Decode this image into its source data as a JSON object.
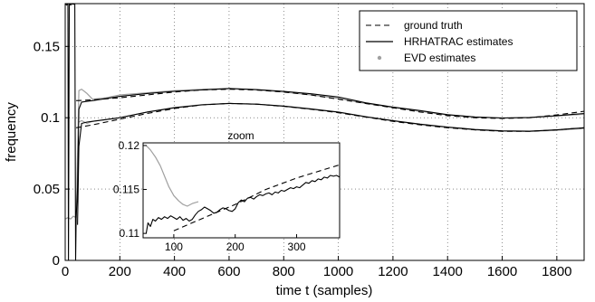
{
  "chart_data": [
    {
      "type": "line",
      "title": "",
      "xlabel": "time t (samples)",
      "ylabel": "frequency",
      "xlim": [
        0,
        1900
      ],
      "ylim": [
        0,
        0.18
      ],
      "xticks": [
        0,
        200,
        400,
        600,
        800,
        1000,
        1200,
        1400,
        1600,
        1800
      ],
      "yticks": [
        0,
        0.05,
        0.1,
        0.15
      ],
      "xtick_labels": [
        "0",
        "200",
        "400",
        "600",
        "800",
        "1000",
        "1200",
        "1400",
        "1600",
        "1800"
      ],
      "ytick_labels": [
        "0",
        "0.05",
        "0.1",
        "0.15"
      ],
      "grid": "dotted",
      "legend_position": "top-right",
      "legend": [
        "ground truth",
        "HRHATRAC estimates",
        "EVD estimates"
      ],
      "series": [
        {
          "name": "ground truth",
          "style": "dashed",
          "color": "#000000",
          "lines": [
            {
              "x": [
                40,
                100,
                200,
                300,
                400,
                500,
                600,
                700,
                800,
                900,
                1000,
                1100,
                1200,
                1300,
                1400,
                1500,
                1600,
                1700,
                1800,
                1900
              ],
              "y": [
                0.112,
                0.1125,
                0.114,
                0.116,
                0.118,
                0.1195,
                0.12,
                0.1195,
                0.118,
                0.116,
                0.113,
                0.11,
                0.107,
                0.104,
                0.1015,
                0.1,
                0.0995,
                0.1,
                0.102,
                0.1045
              ]
            },
            {
              "x": [
                40,
                100,
                200,
                300,
                400,
                500,
                600,
                700,
                800,
                900,
                1000,
                1100,
                1200,
                1300,
                1400,
                1500,
                1600,
                1700,
                1800,
                1900
              ],
              "y": [
                0.093,
                0.095,
                0.099,
                0.103,
                0.1065,
                0.109,
                0.11,
                0.1095,
                0.108,
                0.106,
                0.1035,
                0.1005,
                0.0975,
                0.095,
                0.093,
                0.0915,
                0.0905,
                0.0905,
                0.0915,
                0.093
              ]
            }
          ]
        },
        {
          "name": "HRHATRAC estimates",
          "style": "solid",
          "color": "#000000",
          "lines": [
            {
              "x": [
                0,
                5,
                10,
                12,
                15,
                20,
                25,
                30,
                35,
                38,
                40,
                45,
                50,
                60,
                80,
                100,
                200,
                300,
                400,
                500,
                600,
                700,
                800,
                900,
                1000,
                1100,
                1200,
                1300,
                1400,
                1500,
                1600,
                1700,
                1800,
                1900
              ],
              "y": [
                0.18,
                0.179,
                0.18,
                0.0,
                0.18,
                0.179,
                0.18,
                0.1795,
                0.18,
                0.0,
                0.03,
                0.05,
                0.106,
                0.111,
                0.1115,
                0.112,
                0.115,
                0.117,
                0.1185,
                0.1195,
                0.1205,
                0.1198,
                0.1185,
                0.1168,
                0.1145,
                0.1105,
                0.1075,
                0.105,
                0.1022,
                0.1005,
                0.0998,
                0.1002,
                0.1015,
                0.103
              ]
            },
            {
              "x": [
                45,
                50,
                60,
                80,
                100,
                200,
                300,
                400,
                500,
                600,
                700,
                800,
                900,
                1000,
                1100,
                1200,
                1300,
                1400,
                1500,
                1600,
                1700,
                1800,
                1900
              ],
              "y": [
                0.025,
                0.08,
                0.096,
                0.097,
                0.0975,
                0.1,
                0.104,
                0.107,
                0.109,
                0.11,
                0.1095,
                0.1082,
                0.1062,
                0.104,
                0.1008,
                0.098,
                0.0955,
                0.0935,
                0.0918,
                0.0908,
                0.0906,
                0.0915,
                0.093
              ]
            }
          ]
        },
        {
          "name": "EVD estimates",
          "style": "dotted",
          "color": "#a0a0a0",
          "lines": [
            {
              "x": [
                0,
                10,
                20,
                30,
                40,
                50,
                60,
                80,
                100,
                150,
                200,
                300,
                400,
                500,
                600,
                700,
                800,
                900,
                1000,
                1100,
                1200,
                1300,
                1400,
                1500,
                1600,
                1700,
                1800,
                1900
              ],
              "y": [
                0.029,
                0.03,
                0.029,
                0.031,
                0.03,
                0.119,
                0.12,
                0.117,
                0.113,
                0.114,
                0.116,
                0.1175,
                0.119,
                0.12,
                0.1205,
                0.1195,
                0.118,
                0.116,
                0.1135,
                0.11,
                0.1072,
                0.1045,
                0.102,
                0.1005,
                0.0998,
                0.1,
                0.1012,
                0.1025
              ]
            },
            {
              "x": [
                50,
                60,
                80,
                100,
                200,
                300,
                400,
                500,
                600,
                700,
                800,
                900,
                1000,
                1100,
                1200,
                1300,
                1400,
                1500,
                1600,
                1700,
                1800,
                1900
              ],
              "y": [
                0.097,
                0.098,
                0.096,
                0.0975,
                0.1,
                0.104,
                0.1072,
                0.1092,
                0.11,
                0.1095,
                0.108,
                0.106,
                0.1038,
                0.1005,
                0.0978,
                0.0952,
                0.0932,
                0.0915,
                0.0906,
                0.0904,
                0.0912,
                0.0925
              ]
            }
          ]
        }
      ]
    },
    {
      "type": "line",
      "title": "zoom",
      "xlim": [
        50,
        370
      ],
      "ylim": [
        0.1095,
        0.1203
      ],
      "xticks": [
        100,
        200,
        300
      ],
      "yticks": [
        0.11,
        0.115,
        0.12
      ],
      "xtick_labels": [
        "100",
        "200",
        "300"
      ],
      "ytick_labels": [
        "0.11",
        "0.115",
        "0.12"
      ],
      "grid": "none",
      "series": [
        {
          "name": "ground truth",
          "style": "dashed",
          "color": "#000000",
          "x": [
            100,
            150,
            200,
            250,
            300,
            370
          ],
          "y": [
            0.1103,
            0.1118,
            0.1133,
            0.115,
            0.1163,
            0.1178
          ]
        },
        {
          "name": "HRHATRAC estimates",
          "style": "solid",
          "color": "#000000",
          "x": [
            55,
            58,
            62,
            66,
            70,
            75,
            80,
            85,
            90,
            95,
            100,
            105,
            110,
            115,
            120,
            125,
            130,
            135,
            140,
            145,
            150,
            155,
            160,
            165,
            170,
            175,
            180,
            185,
            190,
            195,
            200,
            205,
            210,
            215,
            220,
            225,
            230,
            235,
            240,
            245,
            250,
            255,
            260,
            265,
            270,
            275,
            280,
            285,
            290,
            295,
            300,
            305,
            310,
            315,
            320,
            325,
            330,
            335,
            340,
            345,
            350,
            355,
            360,
            365,
            370
          ],
          "y": [
            0.11,
            0.1112,
            0.1108,
            0.1116,
            0.1114,
            0.1118,
            0.1116,
            0.1119,
            0.1117,
            0.112,
            0.1118,
            0.1116,
            0.1119,
            0.1115,
            0.1117,
            0.1114,
            0.1116,
            0.1121,
            0.1125,
            0.1127,
            0.113,
            0.1128,
            0.1126,
            0.1123,
            0.1124,
            0.1127,
            0.1129,
            0.1128,
            0.1126,
            0.1125,
            0.1128,
            0.1135,
            0.1138,
            0.1136,
            0.114,
            0.1141,
            0.1139,
            0.1142,
            0.1144,
            0.1143,
            0.1145,
            0.1146,
            0.1144,
            0.1147,
            0.1146,
            0.1149,
            0.1148,
            0.115,
            0.1152,
            0.1151,
            0.1153,
            0.1152,
            0.1155,
            0.1158,
            0.1157,
            0.116,
            0.1159,
            0.1162,
            0.1161,
            0.1164,
            0.1163,
            0.1166,
            0.1165,
            0.1166,
            0.1164
          ]
        },
        {
          "name": "EVD estimates",
          "style": "dotted",
          "color": "#a0a0a0",
          "x": [
            55,
            62,
            70,
            78,
            85,
            92,
            100,
            108,
            115,
            122,
            130,
            140
          ],
          "y": [
            0.12,
            0.1195,
            0.1187,
            0.1177,
            0.1165,
            0.1153,
            0.1143,
            0.1137,
            0.1133,
            0.1131,
            0.1134,
            0.1136
          ]
        }
      ]
    }
  ]
}
